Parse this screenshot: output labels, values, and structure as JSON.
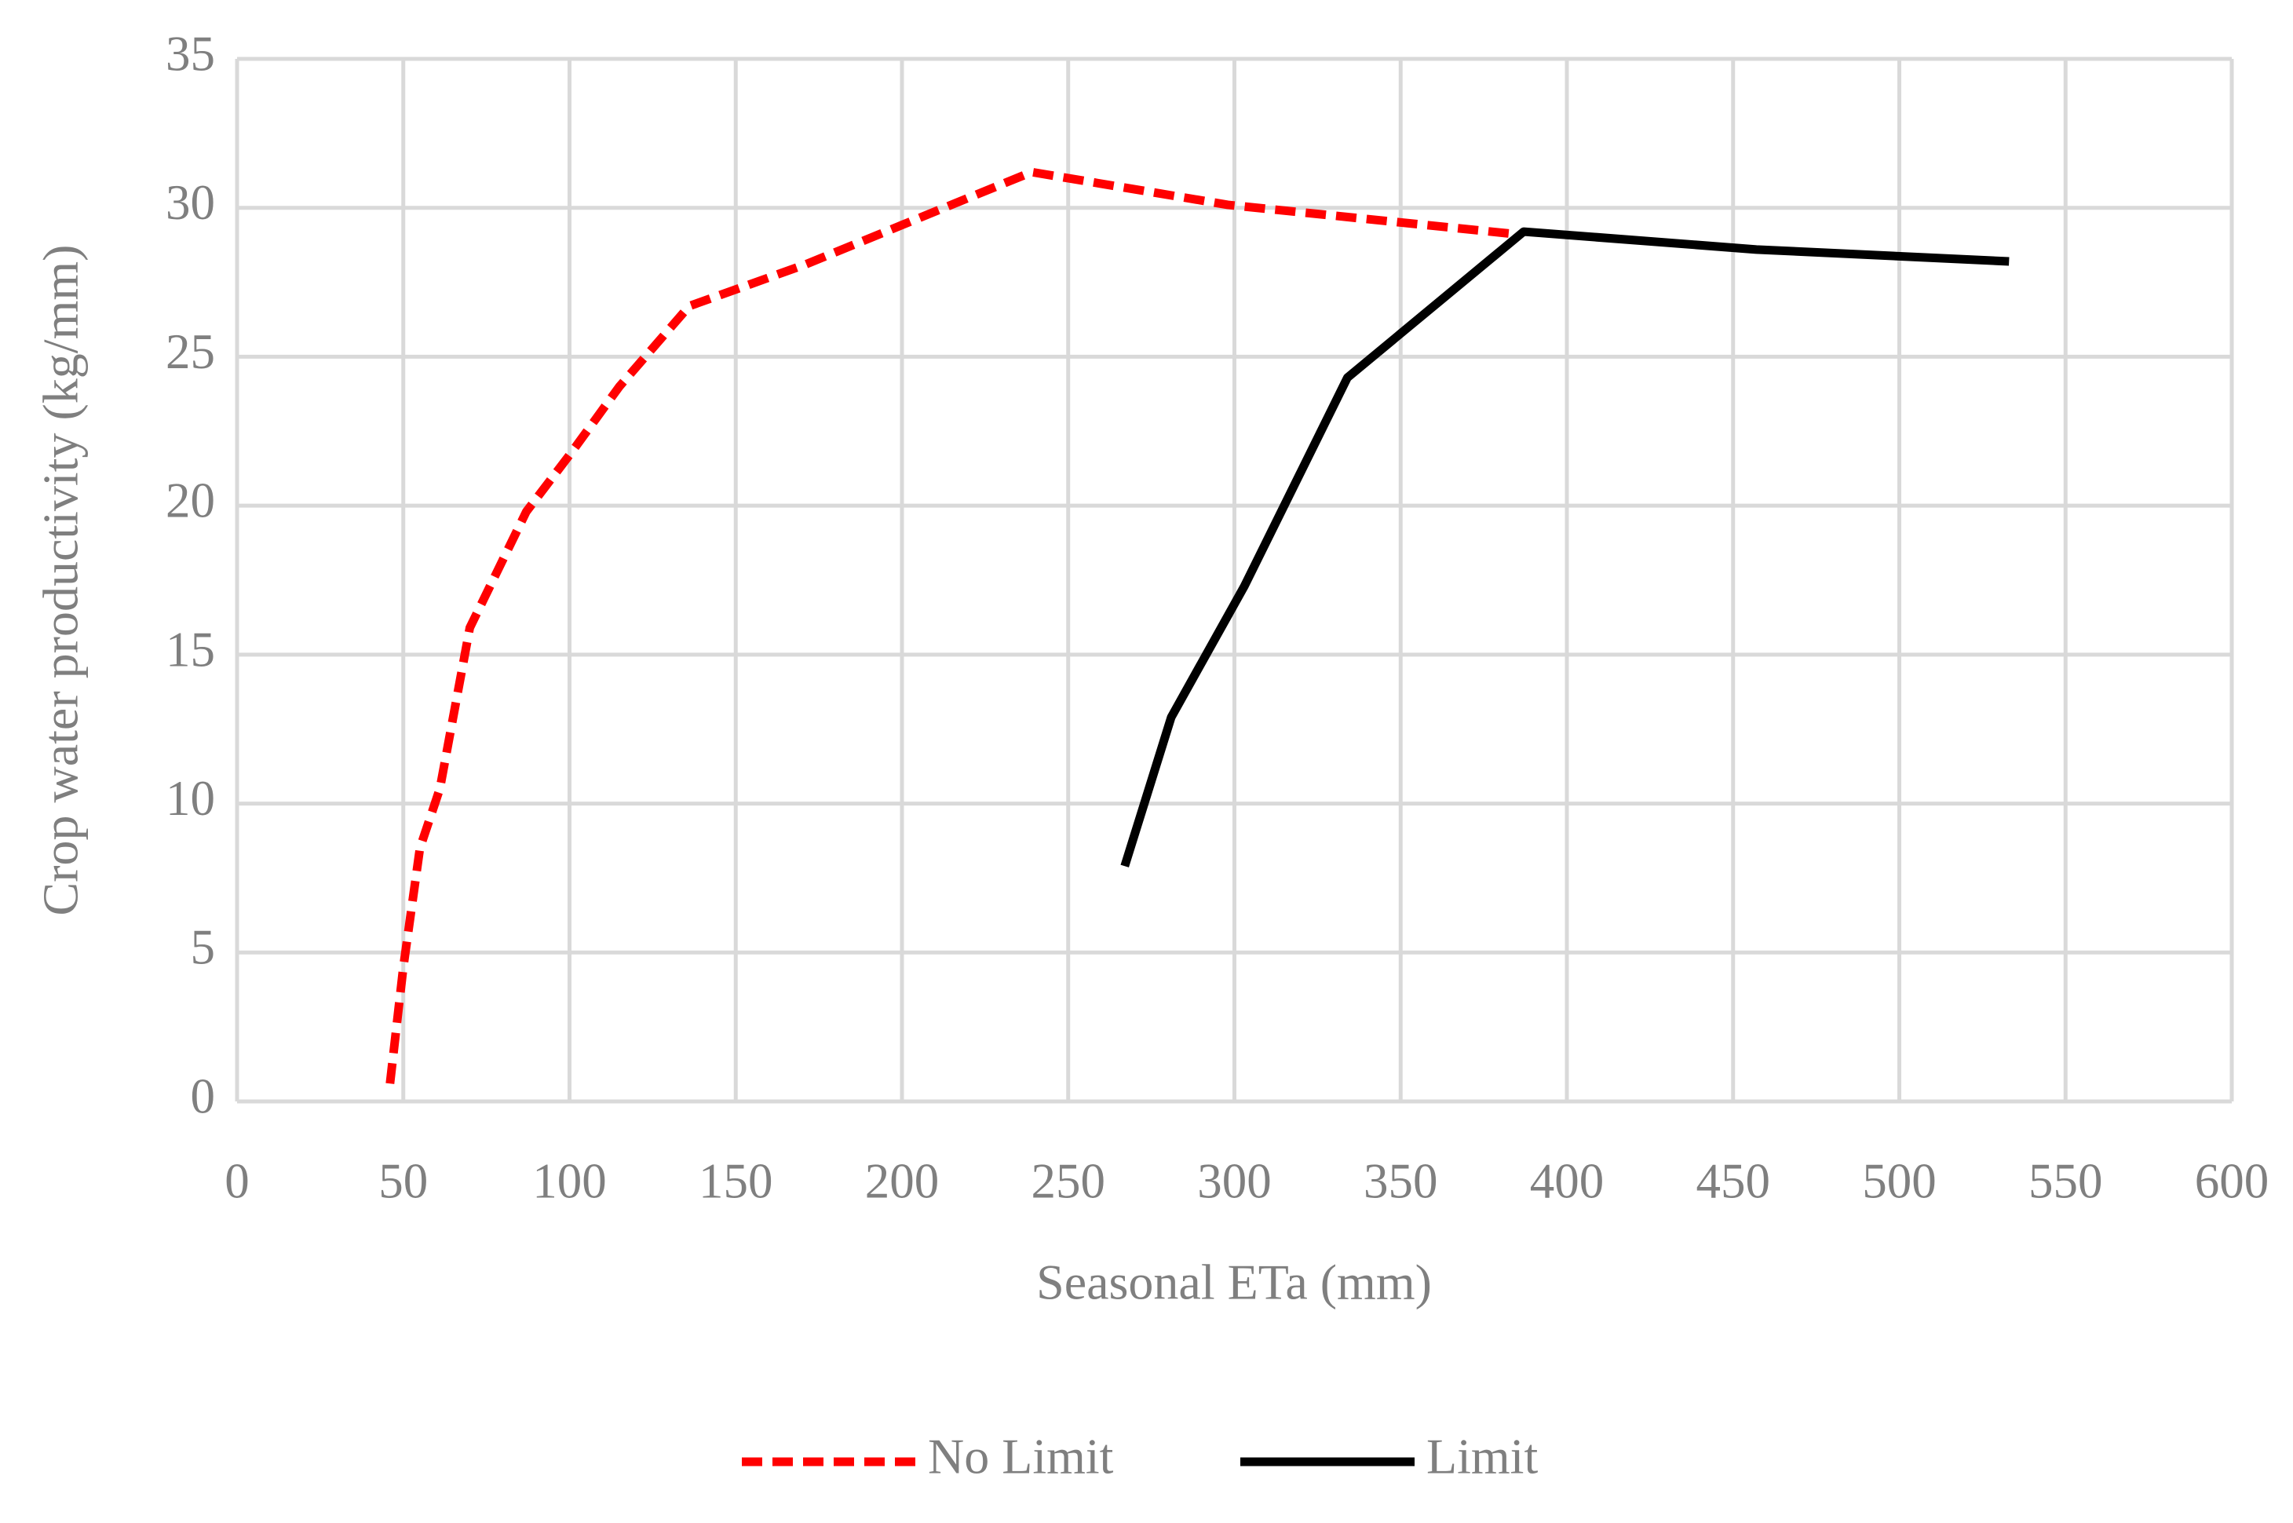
{
  "chart_data": {
    "type": "line",
    "x_label": "Seasonal ETa (mm)",
    "y_label": "Crop water productivity  (kg/mm)",
    "xlim": [
      0,
      600
    ],
    "ylim": [
      0,
      35
    ],
    "xticks": [
      0,
      50,
      100,
      150,
      200,
      250,
      300,
      350,
      400,
      450,
      500,
      550,
      600
    ],
    "yticks": [
      0,
      5,
      10,
      15,
      20,
      25,
      30,
      35
    ],
    "grid": true,
    "legend": "bottom",
    "series": [
      {
        "name": "No Limit",
        "color": "#ff0000",
        "dashed": true,
        "x": [
          46,
          50,
          55,
          61,
          70,
          87,
          100,
          115,
          136,
          171,
          239,
          298,
          386
        ],
        "values": [
          0.6,
          4.5,
          8.5,
          10.5,
          15.9,
          19.8,
          21.7,
          24,
          26.7,
          28.1,
          31.2,
          30.1,
          29.1
        ]
      },
      {
        "name": "Limit",
        "color": "#000000",
        "dashed": false,
        "x": [
          267,
          281,
          303,
          334,
          387,
          457,
          533
        ],
        "values": [
          7.9,
          12.9,
          17.3,
          24.3,
          29.2,
          28.6,
          28.2
        ]
      }
    ]
  }
}
